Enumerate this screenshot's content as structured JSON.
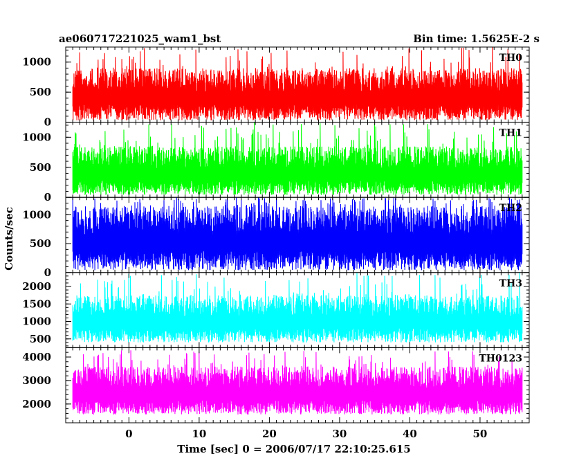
{
  "chart_data": {
    "type": "line",
    "header_left": "ae060717221025_wam1_bst",
    "header_right": "Bin time: 1.5625E-2 s",
    "xlabel": "Time [sec] 0 = 2006/07/17 22:10:25.615",
    "ylabel": "Counts/sec",
    "xlim": [
      -9,
      57
    ],
    "x_range_data": [
      -8,
      56
    ],
    "x_ticks": [
      0,
      10,
      20,
      30,
      40,
      50
    ],
    "x_tick_labels": [
      "0",
      "10",
      "20",
      "30",
      "40",
      "50"
    ],
    "grid": false,
    "panels": [
      {
        "label": "TH0",
        "color": "#ff0000",
        "ylim": [
          0,
          1250
        ],
        "y_ticks": [
          0,
          500,
          1000
        ],
        "y_tick_labels": [
          "0",
          "500",
          "1000"
        ],
        "typical_min": 30,
        "typical_max": 900,
        "peak_max": 1250
      },
      {
        "label": "TH1",
        "color": "#00ff00",
        "ylim": [
          0,
          1250
        ],
        "y_ticks": [
          0,
          500,
          1000
        ],
        "y_tick_labels": [
          "0",
          "500",
          "1000"
        ],
        "typical_min": 40,
        "typical_max": 850,
        "peak_max": 1250
      },
      {
        "label": "TH2",
        "color": "#0000ff",
        "ylim": [
          0,
          1300
        ],
        "y_ticks": [
          0,
          500,
          1000
        ],
        "y_tick_labels": [
          "0",
          "500",
          "1000"
        ],
        "typical_min": 40,
        "typical_max": 1150,
        "peak_max": 1300
      },
      {
        "label": "TH3",
        "color": "#00ffff",
        "ylim": [
          250,
          2400
        ],
        "y_ticks": [
          500,
          1000,
          1500,
          2000
        ],
        "y_tick_labels": [
          "500",
          "1000",
          "1500",
          "2000"
        ],
        "typical_min": 400,
        "typical_max": 1750,
        "peak_max": 2400
      },
      {
        "label": "TH0123",
        "color": "#ff00ff",
        "ylim": [
          1200,
          4400
        ],
        "y_ticks": [
          2000,
          3000,
          4000
        ],
        "y_tick_labels": [
          "2000",
          "3000",
          "4000"
        ],
        "typical_min": 1550,
        "typical_max": 3600,
        "peak_max": 4300
      }
    ]
  }
}
